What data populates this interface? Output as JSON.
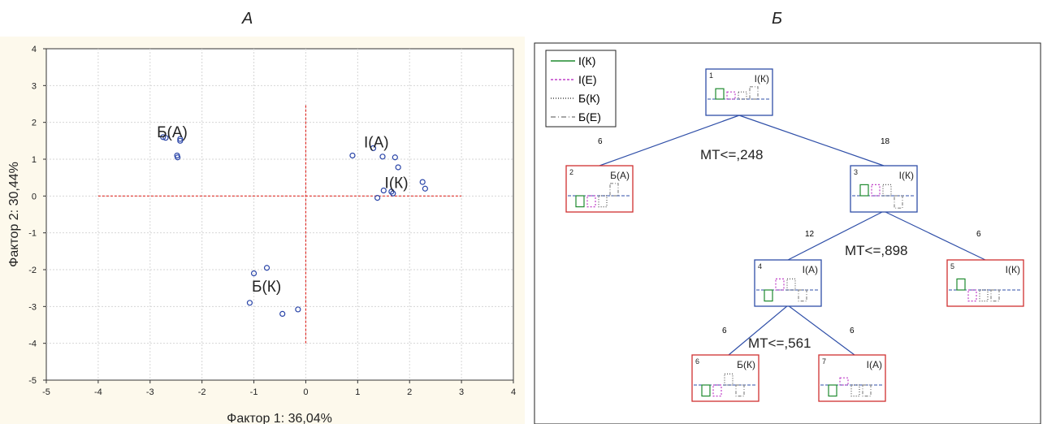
{
  "panels": {
    "left_label": "А",
    "right_label": "Б"
  },
  "chart_data": [
    {
      "type": "scatter",
      "xlabel": "Фактор 1: 36,04%",
      "ylabel": "Фактор 2: 30,44%",
      "xlim": [
        -5,
        4
      ],
      "ylim": [
        -5,
        4
      ],
      "xticks": [
        -5,
        -4,
        -3,
        -2,
        -1,
        0,
        1,
        2,
        3,
        4
      ],
      "yticks": [
        -5,
        -4,
        -3,
        -2,
        -1,
        0,
        1,
        2,
        3,
        4
      ],
      "grid": true,
      "reference_lines": [
        {
          "orientation": "horizontal",
          "y": 0,
          "x_from": -4,
          "x_to": 3,
          "color": "#e0302a"
        },
        {
          "orientation": "vertical",
          "x": 0,
          "y_from": -4,
          "y_to": 2.5,
          "color": "#e0302a"
        }
      ],
      "marker_color": "#2a45a8",
      "series": [
        {
          "name": "Б(А)",
          "points": [
            [
              -2.75,
              1.6
            ],
            [
              -2.7,
              1.58
            ],
            [
              -2.42,
              1.5
            ],
            [
              -2.42,
              1.55
            ],
            [
              -2.48,
              1.1
            ],
            [
              -2.47,
              1.05
            ]
          ]
        },
        {
          "name": "I(А)",
          "points": [
            [
              0.9,
              1.1
            ],
            [
              1.48,
              1.07
            ],
            [
              1.72,
              1.05
            ],
            [
              1.78,
              0.78
            ],
            [
              1.3,
              1.3
            ]
          ]
        },
        {
          "name": "I(К)",
          "points": [
            [
              2.25,
              0.38
            ],
            [
              2.3,
              0.2
            ],
            [
              1.5,
              0.15
            ],
            [
              1.65,
              0.12
            ],
            [
              1.68,
              0.07
            ],
            [
              1.38,
              -0.05
            ]
          ]
        },
        {
          "name": "Б(К)",
          "points": [
            [
              -0.75,
              -1.95
            ],
            [
              -1.0,
              -2.1
            ],
            [
              -1.08,
              -2.9
            ],
            [
              -0.45,
              -3.2
            ],
            [
              -0.15,
              -3.08
            ]
          ]
        }
      ],
      "annotations": [
        {
          "text": "Б(А)",
          "x": -2.87,
          "y": 1.6
        },
        {
          "text": "I(А)",
          "x": 1.12,
          "y": 1.32
        },
        {
          "text": "I(К)",
          "x": 1.52,
          "y": 0.22
        },
        {
          "text": "Б(К)",
          "x": -1.04,
          "y": -2.6
        }
      ]
    },
    {
      "type": "diagram",
      "legend": [
        {
          "label": "I(К)",
          "color": "#1e8a2e",
          "dash": "solid"
        },
        {
          "label": "I(Е)",
          "color": "#c040c8",
          "dash": "dashed"
        },
        {
          "label": "Б(К)",
          "color": "#555555",
          "dash": "dotted"
        },
        {
          "label": "Б(Е)",
          "color": "#8a8a8a",
          "dash": "dashdot"
        }
      ],
      "nodes": [
        {
          "id": "1",
          "label": "I(К)",
          "frame": "#2f4fa8"
        },
        {
          "id": "2",
          "label": "Б(А)",
          "frame": "#d03030"
        },
        {
          "id": "3",
          "label": "I(К)",
          "frame": "#2f4fa8"
        },
        {
          "id": "4",
          "label": "I(А)",
          "frame": "#2f4fa8"
        },
        {
          "id": "5",
          "label": "I(К)",
          "frame": "#d03030"
        },
        {
          "id": "6",
          "label": "Б(К)",
          "frame": "#d03030"
        },
        {
          "id": "7",
          "label": "I(А)",
          "frame": "#d03030"
        }
      ],
      "splits": [
        {
          "rule": "МТ<=,248",
          "left_count": "6",
          "right_count": "18"
        },
        {
          "rule": "МТ<=,898",
          "left_count": "12",
          "right_count": "6"
        },
        {
          "rule": "МТ<=,561",
          "left_count": "6",
          "right_count": "6"
        }
      ]
    }
  ]
}
